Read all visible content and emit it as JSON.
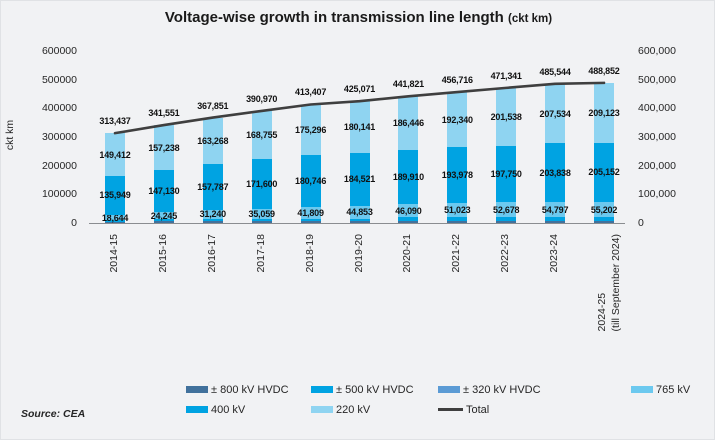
{
  "title": {
    "main": "Voltage-wise growth in transmission line length",
    "unit": "(ckt km)"
  },
  "source_note": "Source: CEA",
  "chart_data": {
    "type": "bar",
    "subtype": "stacked-bar-with-total-line",
    "title": "Voltage-wise growth in transmission line length (ckt km)",
    "ylabel": "ckt km",
    "ylim": [
      0,
      600000
    ],
    "grid": false,
    "legend_position": "bottom",
    "y_ticks_left": [
      "600000",
      "500000",
      "400000",
      "300000",
      "200000",
      "100000",
      "0"
    ],
    "y_ticks_right": [
      "600,000",
      "500,000",
      "400,000",
      "300,000",
      "200,000",
      "100,000",
      "0"
    ],
    "categories": [
      "2014-15",
      "2015-16",
      "2016-17",
      "2017-18",
      "2018-19",
      "2019-20",
      "2020-21",
      "2021-22",
      "2022-23",
      "2023-24",
      "2024-25"
    ],
    "last_category_note": "(till September 2024)",
    "series": [
      {
        "name": "765 kV",
        "labeled": true,
        "values": [
          18644,
          24245,
          31240,
          35059,
          41809,
          44853,
          46090,
          51023,
          52678,
          54797,
          55202
        ]
      },
      {
        "name": "400 kV",
        "labeled": true,
        "values": [
          135949,
          147130,
          157787,
          171600,
          180746,
          184521,
          189910,
          193978,
          197750,
          203838,
          205152
        ]
      },
      {
        "name": "220 kV",
        "labeled": true,
        "values": [
          149412,
          157238,
          163268,
          168755,
          175296,
          180141,
          186446,
          192340,
          201538,
          207534,
          209123
        ]
      }
    ],
    "hvdc_unlabeled_remainder": {
      "note": "HVDC bar segments are drawn but not value-labeled in the chart; values derived as Total minus labeled segments",
      "values": [
        9432,
        12938,
        15556,
        15556,
        15556,
        15556,
        19375,
        19375,
        19375,
        19375,
        19375
      ]
    },
    "total_line": {
      "name": "Total",
      "values": [
        313437,
        341551,
        367851,
        390970,
        413407,
        425071,
        441821,
        456716,
        471341,
        485544,
        488852
      ]
    },
    "legend": [
      {
        "label": "± 800 kV HVDC",
        "color": "#41719c",
        "type": "swatch"
      },
      {
        "label": "± 500 kV HVDC",
        "color": "#00a3e2",
        "type": "swatch"
      },
      {
        "label": "± 320 kV HVDC",
        "color": "#5b9bd5",
        "type": "swatch"
      },
      {
        "label": "765 kV",
        "color": "#6cc9ef",
        "type": "swatch"
      },
      {
        "label": "400 kV",
        "color": "#00a3e2",
        "type": "swatch"
      },
      {
        "label": "220 kV",
        "color": "#8fd4f1",
        "type": "swatch"
      },
      {
        "label": "Total",
        "color": "#3f3f3f",
        "type": "line"
      }
    ],
    "colors": {
      "765 kV": "#6cc9ef",
      "400 kV": "#00a3e2",
      "220 kV": "#8fd4f1",
      "hvdc_dark": "#41719c",
      "hvdc_bright": "#00a3e2",
      "total_line": "#3f3f3f"
    }
  }
}
